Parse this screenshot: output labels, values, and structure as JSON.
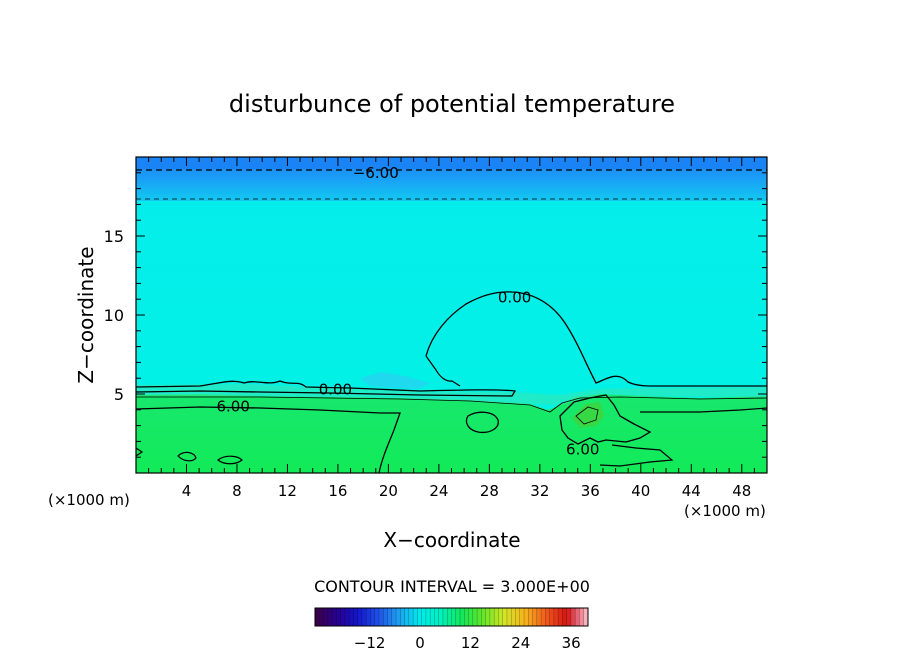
{
  "chart_data": {
    "type": "heatmap",
    "title": "disturbunce of potential temperature",
    "xlabel": "X−coordinate",
    "ylabel": "Z−coordinate",
    "x_unit_left": "(×1000 m)",
    "x_unit_right": "(×1000 m)",
    "xlim": [
      0,
      50
    ],
    "ylim": [
      0,
      20
    ],
    "x_ticks": [
      4,
      8,
      12,
      16,
      20,
      24,
      28,
      32,
      36,
      40,
      44,
      48
    ],
    "y_ticks": [
      5,
      10,
      15
    ],
    "contour_labels": [
      {
        "text": "−6.00",
        "x": 19,
        "y": 19.0
      },
      {
        "text": "0.00",
        "x": 30,
        "y": 11.1
      },
      {
        "text": "0.00",
        "x": 15.8,
        "y": 5.3
      },
      {
        "text": "6.00",
        "x": 7.7,
        "y": 4.2
      },
      {
        "text": "6.00",
        "x": 35.4,
        "y": 1.5
      }
    ],
    "contour_interval_text": "CONTOUR INTERVAL = 3.000E+00",
    "colorbar": {
      "range": [
        -25,
        40
      ],
      "ticks": [
        -12,
        0,
        12,
        24,
        36
      ],
      "tick_labels": [
        "−12",
        "0",
        "12",
        "24",
        "36"
      ]
    },
    "colors": {
      "upper_band": "#1e90ff",
      "upper_band_light": "#14b4f5",
      "background_field": "#00f5e6",
      "lower_field": "#14e85a",
      "warm_patch": "#3cd23c",
      "cool_patch": "#2ad2f0"
    }
  }
}
